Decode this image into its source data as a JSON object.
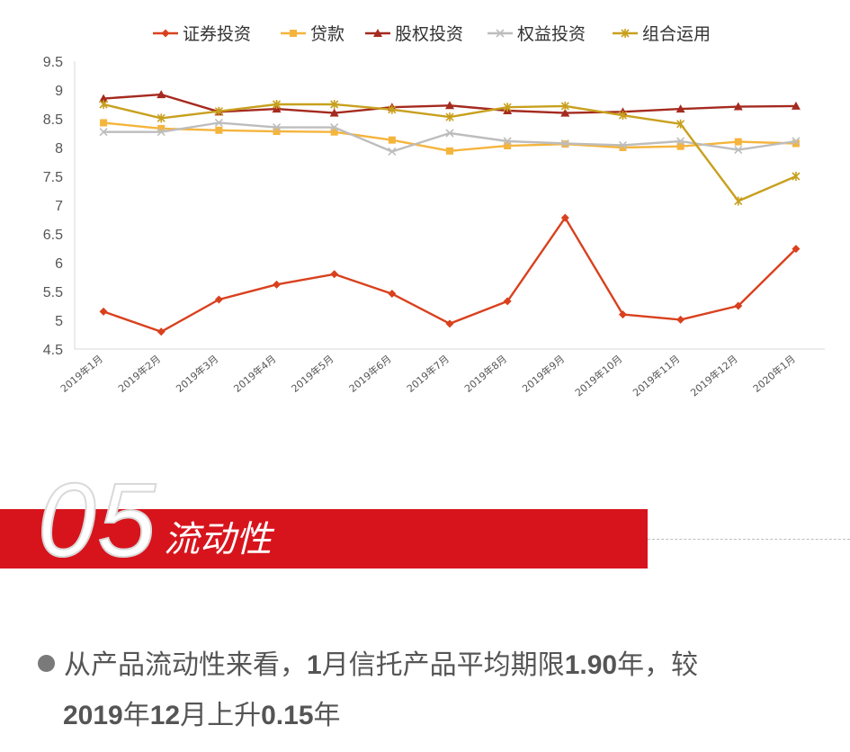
{
  "chart_data": {
    "type": "line",
    "categories": [
      "2019年1月",
      "2019年2月",
      "2019年3月",
      "2019年4月",
      "2019年5月",
      "2019年6月",
      "2019年7月",
      "2019年8月",
      "2019年9月",
      "2019年10月",
      "2019年11月",
      "2019年12月",
      "2020年1月"
    ],
    "ylim": [
      4.5,
      9.5
    ],
    "yticks": [
      "9.5",
      "9",
      "8.5",
      "8",
      "7.5",
      "7",
      "6.5",
      "6",
      "5.5",
      "5",
      "4.5"
    ],
    "ytick_values": [
      9.5,
      9,
      8.5,
      8,
      7.5,
      7,
      6.5,
      6,
      5.5,
      5,
      4.5
    ],
    "legend_position": "top",
    "grid": false,
    "series": [
      {
        "name": "证券投资",
        "color": "#d9411e",
        "marker": "diamond",
        "values": [
          5.15,
          4.8,
          5.36,
          5.62,
          5.8,
          5.46,
          4.94,
          5.33,
          6.78,
          5.1,
          5.01,
          5.25,
          6.24
        ]
      },
      {
        "name": "贷款",
        "color": "#f5b43c",
        "marker": "square",
        "values": [
          8.43,
          8.33,
          8.3,
          8.28,
          8.27,
          8.13,
          7.94,
          8.03,
          8.06,
          8.0,
          8.02,
          8.1,
          8.07
        ]
      },
      {
        "name": "股权投资",
        "color": "#a52a1f",
        "marker": "triangle",
        "values": [
          8.85,
          8.92,
          8.62,
          8.67,
          8.6,
          8.7,
          8.73,
          8.64,
          8.6,
          8.62,
          8.67,
          8.71,
          8.72
        ]
      },
      {
        "name": "权益投资",
        "color": "#bdbdbd",
        "marker": "x",
        "values": [
          8.27,
          8.27,
          8.43,
          8.35,
          8.35,
          7.93,
          8.25,
          8.11,
          8.07,
          8.04,
          8.11,
          7.96,
          8.11
        ]
      },
      {
        "name": "组合运用",
        "color": "#c8a01e",
        "marker": "asterisk",
        "values": [
          8.75,
          8.51,
          8.63,
          8.75,
          8.75,
          8.66,
          8.53,
          8.7,
          8.72,
          8.56,
          8.41,
          7.07,
          7.5
        ]
      }
    ]
  },
  "section": {
    "number": "05",
    "title": "流动性"
  },
  "summary": {
    "t1": "从产品流动性来看，",
    "b1": "1",
    "t2": "月信托产品平均期限",
    "b2": "1.90",
    "t3": "年，较",
    "b3": "2019",
    "t4": "年",
    "b4": "12",
    "t5": "月上升",
    "b5": "0.15",
    "t6": "年"
  }
}
